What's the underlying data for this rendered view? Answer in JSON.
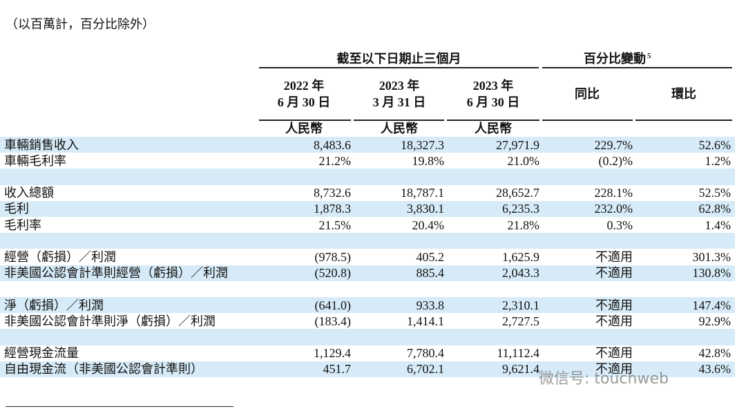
{
  "note": "（以百萬計，百分比除外）",
  "header": {
    "period_group": "截至以下日期止三個月",
    "change_group": "百分比變動",
    "change_footnote": "5",
    "columns": [
      [
        "2022 年",
        "6 月 30 日"
      ],
      [
        "2023 年",
        "3 月 31 日"
      ],
      [
        "2023 年",
        "6 月 30 日"
      ],
      [
        "同比"
      ],
      [
        "環比"
      ]
    ],
    "currency": [
      "人民幣",
      "人民幣",
      "人民幣"
    ]
  },
  "table": {
    "groups": [
      [
        [
          "車輛銷售收入",
          "8,483.6",
          "18,327.3",
          "27,971.9",
          "229.7%",
          "52.6%"
        ],
        [
          "車輛毛利率",
          "21.2%",
          "19.8%",
          "21.0%",
          "(0.2)%",
          "1.2%"
        ]
      ],
      [
        [
          "收入總額",
          "8,732.6",
          "18,787.1",
          "28,652.7",
          "228.1%",
          "52.5%"
        ],
        [
          "毛利",
          "1,878.3",
          "3,830.1",
          "6,235.3",
          "232.0%",
          "62.8%"
        ],
        [
          "毛利率",
          "21.5%",
          "20.4%",
          "21.8%",
          "0.3%",
          "1.4%"
        ]
      ],
      [
        [
          "經營（虧損）／利潤",
          "(978.5)",
          "405.2",
          "1,625.9",
          "不適用",
          "301.3%"
        ],
        [
          "非美國公認會計準則經營（虧損）／利潤",
          "(520.8)",
          "885.4",
          "2,043.3",
          "不適用",
          "130.8%"
        ]
      ],
      [
        [
          "淨（虧損）／利潤",
          "(641.0)",
          "933.8",
          "2,310.1",
          "不適用",
          "147.4%"
        ],
        [
          "非美國公認會計準則淨（虧損）／利潤",
          "(183.4)",
          "1,414.1",
          "2,727.5",
          "不適用",
          "92.9%"
        ]
      ],
      [
        [
          "經營現金流量",
          "1,129.4",
          "7,780.4",
          "11,112.4",
          "不適用",
          "42.8%"
        ],
        [
          "自由現金流（非美國公認會計準則）",
          "451.7",
          "6,702.1",
          "9,621.4",
          "不適用",
          "43.6%"
        ]
      ]
    ]
  },
  "watermark": "微信号: touchweb"
}
